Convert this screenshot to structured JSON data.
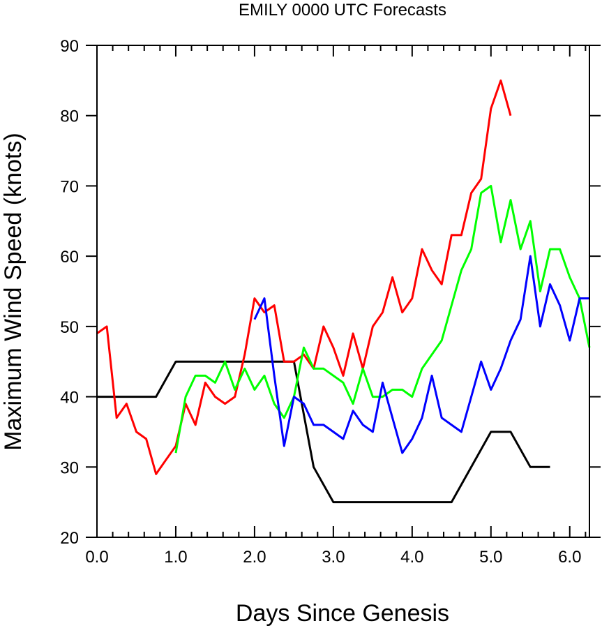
{
  "chart_data": {
    "type": "line",
    "title": "EMILY 0000 UTC Forecasts",
    "xlabel": "Days Since Genesis",
    "ylabel": "Maximum Wind Speed (knots)",
    "xlim": [
      0,
      6.25
    ],
    "ylim": [
      20,
      90
    ],
    "xticks": [
      0,
      1,
      2,
      3,
      4,
      5,
      6
    ],
    "xtick_labels": [
      "0.0",
      "1.0",
      "2.0",
      "3.0",
      "4.0",
      "5.0",
      "6.0"
    ],
    "yticks": [
      20,
      30,
      40,
      50,
      60,
      70,
      80,
      90
    ],
    "ytick_labels": [
      "20",
      "30",
      "40",
      "50",
      "60",
      "70",
      "80",
      "90"
    ],
    "grid": false,
    "series": [
      {
        "color": "#000000",
        "x": [
          0,
          0.75,
          1.0,
          2.5,
          2.75,
          3.0,
          4.5,
          5.0,
          5.25,
          5.5,
          5.75
        ],
        "values": [
          40,
          40,
          45,
          45,
          30,
          25,
          25,
          35,
          35,
          30,
          30
        ]
      },
      {
        "color": "#ff0000",
        "x": [
          0,
          0.125,
          0.25,
          0.375,
          0.5,
          0.625,
          0.75,
          0.875,
          1.0,
          1.125,
          1.25,
          1.375,
          1.5,
          1.625,
          1.75,
          1.875,
          2.0,
          2.125,
          2.25,
          2.375,
          2.5,
          2.625,
          2.75,
          2.875,
          3.0,
          3.125,
          3.25,
          3.375,
          3.5,
          3.625,
          3.75,
          3.875,
          4.0,
          4.125,
          4.25,
          4.375,
          4.5,
          4.625,
          4.75,
          4.875,
          5.0,
          5.125,
          5.25
        ],
        "values": [
          49,
          50,
          37,
          39,
          35,
          34,
          29,
          31,
          33,
          39,
          36,
          42,
          40,
          39,
          40,
          46,
          54,
          52,
          53,
          45,
          45,
          46,
          44,
          50,
          47,
          43,
          49,
          44,
          50,
          52,
          57,
          52,
          54,
          61,
          58,
          56,
          63,
          63,
          69,
          71,
          81,
          85,
          80
        ]
      },
      {
        "color": "#00ff00",
        "x": [
          1.0,
          1.125,
          1.25,
          1.375,
          1.5,
          1.625,
          1.75,
          1.875,
          2.0,
          2.125,
          2.25,
          2.375,
          2.5,
          2.625,
          2.75,
          2.875,
          3.0,
          3.125,
          3.25,
          3.375,
          3.5,
          3.625,
          3.75,
          3.875,
          4.0,
          4.125,
          4.25,
          4.375,
          4.5,
          4.625,
          4.75,
          4.875,
          5.0,
          5.125,
          5.25,
          5.375,
          5.5,
          5.625,
          5.75,
          5.875,
          6.0,
          6.125,
          6.25
        ],
        "values": [
          32,
          40,
          43,
          43,
          42,
          45,
          41,
          44,
          41,
          43,
          39,
          37,
          40,
          47,
          44,
          44,
          43,
          42,
          39,
          44,
          40,
          40,
          41,
          41,
          40,
          44,
          46,
          48,
          53,
          58,
          61,
          69,
          70,
          62,
          68,
          61,
          65,
          55,
          61,
          61,
          57,
          54,
          47
        ]
      },
      {
        "color": "#0000ff",
        "x": [
          2.0,
          2.125,
          2.25,
          2.375,
          2.5,
          2.625,
          2.75,
          2.875,
          3.0,
          3.125,
          3.25,
          3.375,
          3.5,
          3.625,
          3.75,
          3.875,
          4.0,
          4.125,
          4.25,
          4.375,
          4.5,
          4.625,
          4.75,
          4.875,
          5.0,
          5.125,
          5.25,
          5.375,
          5.5,
          5.625,
          5.75,
          5.875,
          6.0,
          6.125,
          6.25
        ],
        "values": [
          51,
          54,
          43,
          33,
          40,
          39,
          36,
          36,
          35,
          34,
          38,
          36,
          35,
          42,
          37,
          32,
          34,
          37,
          43,
          37,
          36,
          35,
          40,
          45,
          41,
          44,
          48,
          51,
          60,
          50,
          56,
          53,
          48,
          54,
          54
        ]
      }
    ]
  }
}
